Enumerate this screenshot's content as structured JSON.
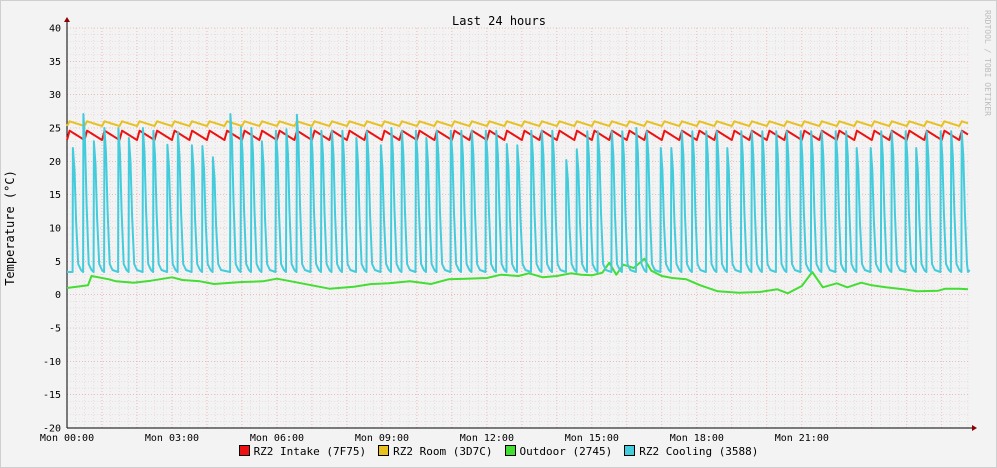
{
  "chart_data": {
    "type": "line",
    "title": "Last 24 hours",
    "ylabel": "Temperature (°C)",
    "xlabel": "",
    "watermark": "RRDTOOL / TOBI OETIKER",
    "ylim": [
      -20,
      40
    ],
    "y_ticks": [
      40,
      35,
      30,
      25,
      20,
      15,
      10,
      5,
      0,
      -5,
      -10,
      -15,
      -20
    ],
    "x_range_hours": [
      0,
      25.75
    ],
    "x_ticks": [
      {
        "hour": 0,
        "label": "Mon 00:00"
      },
      {
        "hour": 3,
        "label": "Mon 03:00"
      },
      {
        "hour": 6,
        "label": "Mon 06:00"
      },
      {
        "hour": 9,
        "label": "Mon 09:00"
      },
      {
        "hour": 12,
        "label": "Mon 12:00"
      },
      {
        "hour": 15,
        "label": "Mon 15:00"
      },
      {
        "hour": 18,
        "label": "Mon 18:00"
      },
      {
        "hour": 21,
        "label": "Mon 21:00"
      }
    ],
    "grid": true,
    "legend_position": "bottom",
    "series": [
      {
        "name": "RZ2 Intake (7F75)",
        "color": "#ee1111",
        "pattern": "oscillating",
        "base": 23.2,
        "peak": 24.6,
        "period_hours": 0.5,
        "note_shape": "sawtooth"
      },
      {
        "name": "RZ2 Room (3D7C)",
        "color": "#e8c020",
        "pattern": "oscillating",
        "base": 25.3,
        "peak": 26.0,
        "period_hours": 0.5,
        "note_shape": "sawtooth"
      },
      {
        "name": "Outdoor (2745)",
        "color": "#44dd33",
        "pattern": "points",
        "points": [
          [
            0.0,
            1.0
          ],
          [
            0.6,
            1.4
          ],
          [
            0.7,
            2.8
          ],
          [
            1.2,
            2.3
          ],
          [
            1.4,
            2.0
          ],
          [
            1.9,
            1.8
          ],
          [
            2.4,
            2.1
          ],
          [
            3.0,
            2.6
          ],
          [
            3.3,
            2.2
          ],
          [
            3.8,
            2.0
          ],
          [
            4.2,
            1.6
          ],
          [
            5.0,
            1.9
          ],
          [
            5.6,
            2.0
          ],
          [
            6.0,
            2.4
          ],
          [
            6.4,
            2.0
          ],
          [
            7.0,
            1.4
          ],
          [
            7.5,
            0.9
          ],
          [
            8.2,
            1.2
          ],
          [
            8.7,
            1.6
          ],
          [
            9.2,
            1.7
          ],
          [
            9.8,
            2.0
          ],
          [
            10.4,
            1.6
          ],
          [
            10.9,
            2.3
          ],
          [
            11.4,
            2.4
          ],
          [
            12.0,
            2.5
          ],
          [
            12.4,
            3.0
          ],
          [
            12.9,
            2.8
          ],
          [
            13.2,
            3.2
          ],
          [
            13.6,
            2.6
          ],
          [
            14.0,
            2.8
          ],
          [
            14.4,
            3.2
          ],
          [
            14.7,
            3.0
          ],
          [
            15.0,
            2.9
          ],
          [
            15.3,
            3.3
          ],
          [
            15.5,
            4.8
          ],
          [
            15.7,
            3.0
          ],
          [
            15.9,
            4.5
          ],
          [
            16.2,
            4.0
          ],
          [
            16.5,
            5.4
          ],
          [
            16.7,
            3.6
          ],
          [
            17.0,
            2.8
          ],
          [
            17.3,
            2.5
          ],
          [
            17.7,
            2.3
          ],
          [
            18.1,
            1.4
          ],
          [
            18.6,
            0.5
          ],
          [
            19.2,
            0.3
          ],
          [
            19.8,
            0.4
          ],
          [
            20.3,
            0.8
          ],
          [
            20.6,
            0.2
          ],
          [
            21.0,
            1.3
          ],
          [
            21.3,
            3.4
          ],
          [
            21.6,
            1.1
          ],
          [
            22.0,
            1.7
          ],
          [
            22.3,
            1.1
          ],
          [
            22.7,
            1.8
          ],
          [
            23.0,
            1.4
          ],
          [
            23.4,
            1.1
          ],
          [
            23.9,
            0.8
          ],
          [
            24.3,
            0.5
          ],
          [
            24.9,
            0.6
          ],
          [
            25.1,
            0.9
          ],
          [
            25.5,
            0.9
          ],
          [
            25.75,
            0.8
          ]
        ]
      },
      {
        "name": "RZ2 Cooling (3588)",
        "color": "#44ccdd",
        "pattern": "spikes",
        "base": 3.4,
        "spikes": [
          [
            0.2,
            22
          ],
          [
            0.5,
            27.1
          ],
          [
            0.8,
            23
          ],
          [
            1.1,
            25
          ],
          [
            1.5,
            25
          ],
          [
            1.8,
            23.5
          ],
          [
            2.2,
            25
          ],
          [
            2.5,
            24.6
          ],
          [
            2.9,
            22.5
          ],
          [
            3.2,
            24.4
          ],
          [
            3.6,
            22.4
          ],
          [
            3.9,
            22.3
          ],
          [
            4.2,
            20.6
          ],
          [
            4.7,
            27.1
          ],
          [
            5.0,
            25.1
          ],
          [
            5.3,
            25
          ],
          [
            5.6,
            23
          ],
          [
            6.0,
            24.6
          ],
          [
            6.3,
            24.8
          ],
          [
            6.6,
            27
          ],
          [
            7.0,
            25
          ],
          [
            7.3,
            24.6
          ],
          [
            7.6,
            24.6
          ],
          [
            7.9,
            24.6
          ],
          [
            8.3,
            23.5
          ],
          [
            8.6,
            24.5
          ],
          [
            9.0,
            22.4
          ],
          [
            9.3,
            25
          ],
          [
            9.6,
            24.6
          ],
          [
            10.0,
            24.6
          ],
          [
            10.3,
            23.5
          ],
          [
            10.6,
            24.6
          ],
          [
            11.0,
            24.6
          ],
          [
            11.3,
            24.6
          ],
          [
            11.6,
            24.6
          ],
          [
            12.0,
            24.6
          ],
          [
            12.3,
            24.6
          ],
          [
            12.6,
            22.6
          ],
          [
            12.9,
            22.4
          ],
          [
            13.3,
            24.6
          ],
          [
            13.6,
            24.6
          ],
          [
            13.9,
            24.6
          ],
          [
            14.3,
            20.2
          ],
          [
            14.6,
            21.8
          ],
          [
            14.9,
            24.5
          ],
          [
            15.2,
            24.5
          ],
          [
            15.6,
            24.5
          ],
          [
            15.9,
            24.5
          ],
          [
            16.3,
            25.0
          ],
          [
            16.6,
            24.5
          ],
          [
            17.0,
            22.0
          ],
          [
            17.3,
            22.0
          ],
          [
            17.6,
            24.5
          ],
          [
            17.9,
            24.5
          ],
          [
            18.3,
            24.5
          ],
          [
            18.6,
            24.5
          ],
          [
            18.9,
            22.0
          ],
          [
            19.3,
            24.5
          ],
          [
            19.6,
            24.5
          ],
          [
            19.9,
            24.5
          ],
          [
            20.3,
            24.5
          ],
          [
            20.6,
            24.5
          ],
          [
            21.0,
            24.5
          ],
          [
            21.3,
            24.5
          ],
          [
            21.6,
            24.5
          ],
          [
            22.0,
            24.5
          ],
          [
            22.3,
            24.5
          ],
          [
            22.6,
            22.0
          ],
          [
            23.0,
            22.0
          ],
          [
            23.3,
            24.5
          ],
          [
            23.6,
            24.5
          ],
          [
            24.0,
            24.5
          ],
          [
            24.3,
            22.0
          ],
          [
            24.6,
            24.5
          ],
          [
            25.0,
            24.5
          ],
          [
            25.3,
            24.5
          ],
          [
            25.6,
            24.5
          ]
        ]
      }
    ]
  }
}
